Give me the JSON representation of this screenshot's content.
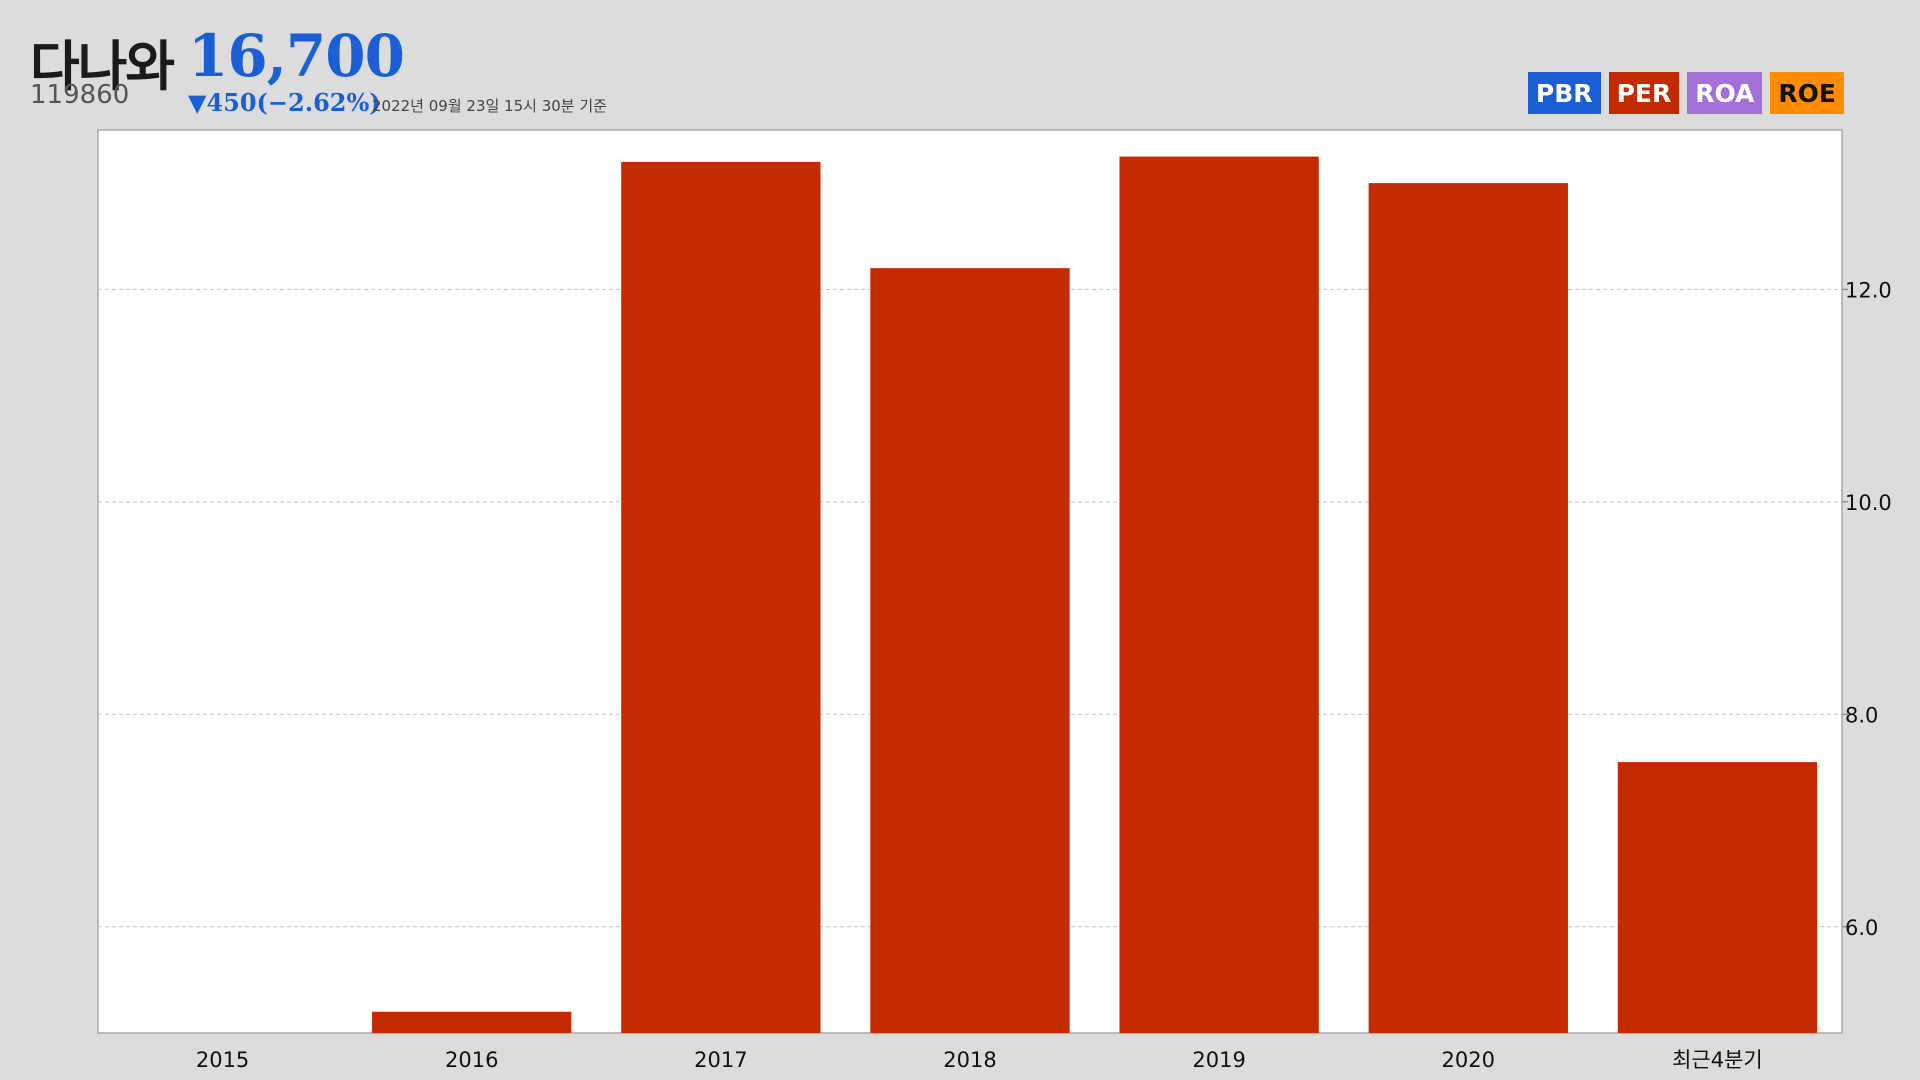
{
  "stock": {
    "name": "다나와",
    "code": "119860",
    "price": "16,700",
    "change": "▼450(−2.62%)",
    "timestamp": "2022년 09월 23일 15시 30분 기준"
  },
  "legend": [
    {
      "label": "PBR",
      "color": "#1a5fd6",
      "text_color": "#ffffff"
    },
    {
      "label": "PER",
      "color": "#c42b03",
      "text_color": "#ffffff"
    },
    {
      "label": "ROA",
      "color": "#a36fd9",
      "text_color": "#ffffff"
    },
    {
      "label": "ROE",
      "color": "#ff8c00",
      "text_color": "#111111"
    }
  ],
  "chart_data": {
    "type": "bar",
    "categories": [
      "2015",
      "2016",
      "2017",
      "2018",
      "2019",
      "2020",
      "최근4분기"
    ],
    "values": [
      null,
      5.2,
      13.2,
      12.2,
      13.25,
      13.0,
      7.55
    ],
    "ylim": [
      5.0,
      13.5
    ],
    "yticks": [
      6.0,
      8.0,
      10.0,
      12.0
    ],
    "ytick_labels": [
      "6.0",
      "8.0",
      "10.0",
      "12.0"
    ],
    "y_axis_position": "right",
    "grid": true,
    "bar_color": "#c42b03"
  }
}
